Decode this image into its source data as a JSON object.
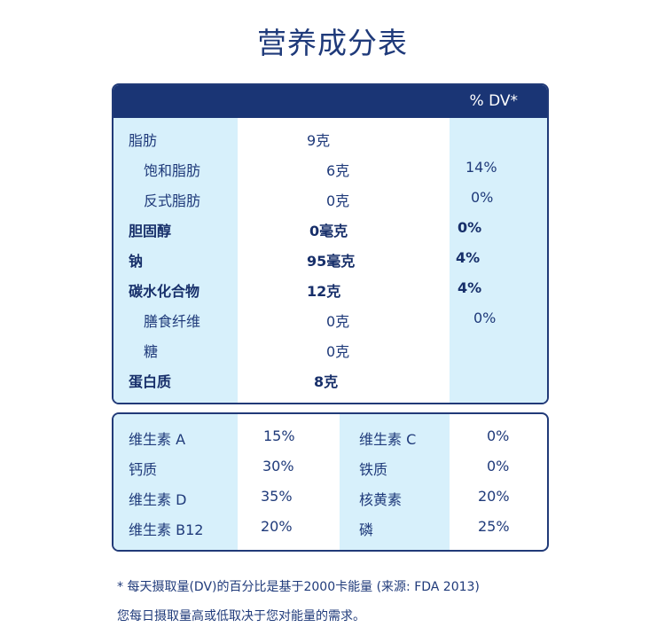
{
  "title": "营养成分表",
  "main_table": {
    "dv_header": "% DV*",
    "rows": [
      {
        "name": "脂肪",
        "amount": "9克",
        "dv": "",
        "indent": false,
        "bold": false
      },
      {
        "name": "饱和脂肪",
        "amount": "6克",
        "dv": "14%",
        "indent": true,
        "bold": false
      },
      {
        "name": "反式脂肪",
        "amount": "0克",
        "dv": "0%",
        "indent": true,
        "bold": false
      },
      {
        "name": "胆固醇",
        "amount": "0毫克",
        "dv": "0%",
        "indent": false,
        "bold": true
      },
      {
        "name": "钠",
        "amount": "95毫克",
        "dv": "4%",
        "indent": false,
        "bold": true
      },
      {
        "name": "碳水化合物",
        "amount": "12克",
        "dv": "4%",
        "indent": false,
        "bold": true
      },
      {
        "name": "膳食纤维",
        "amount": "0克",
        "dv": "0%",
        "indent": true,
        "bold": false
      },
      {
        "name": "糖",
        "amount": "0克",
        "dv": "",
        "indent": true,
        "bold": false
      },
      {
        "name": "蛋白质",
        "amount": "8克",
        "dv": "",
        "indent": false,
        "bold": true
      }
    ]
  },
  "vitamins_table": {
    "rows": [
      {
        "left_name": "维生素 A",
        "left_value": "15%",
        "right_name": "维生素 C",
        "right_value": "0%"
      },
      {
        "left_name": "钙质",
        "left_value": "30%",
        "right_name": "铁质",
        "right_value": "0%"
      },
      {
        "left_name": "维生素 D",
        "left_value": "35%",
        "right_name": "核黄素",
        "right_value": "20%"
      },
      {
        "left_name": "维生素 B12",
        "left_value": "20%",
        "right_name": "磷",
        "right_value": "25%"
      }
    ]
  },
  "footnotes": {
    "line1": "* 每天摄取量(DV)的百分比是基于2000卡能量 (来源: FDA 2013)",
    "line2": "您每日摄取量高或低取决于您对能量的需求。"
  },
  "colors": {
    "header_navy": "#1a3575",
    "column_tint": "#d7f0fb",
    "text": "#1f3a7a"
  }
}
